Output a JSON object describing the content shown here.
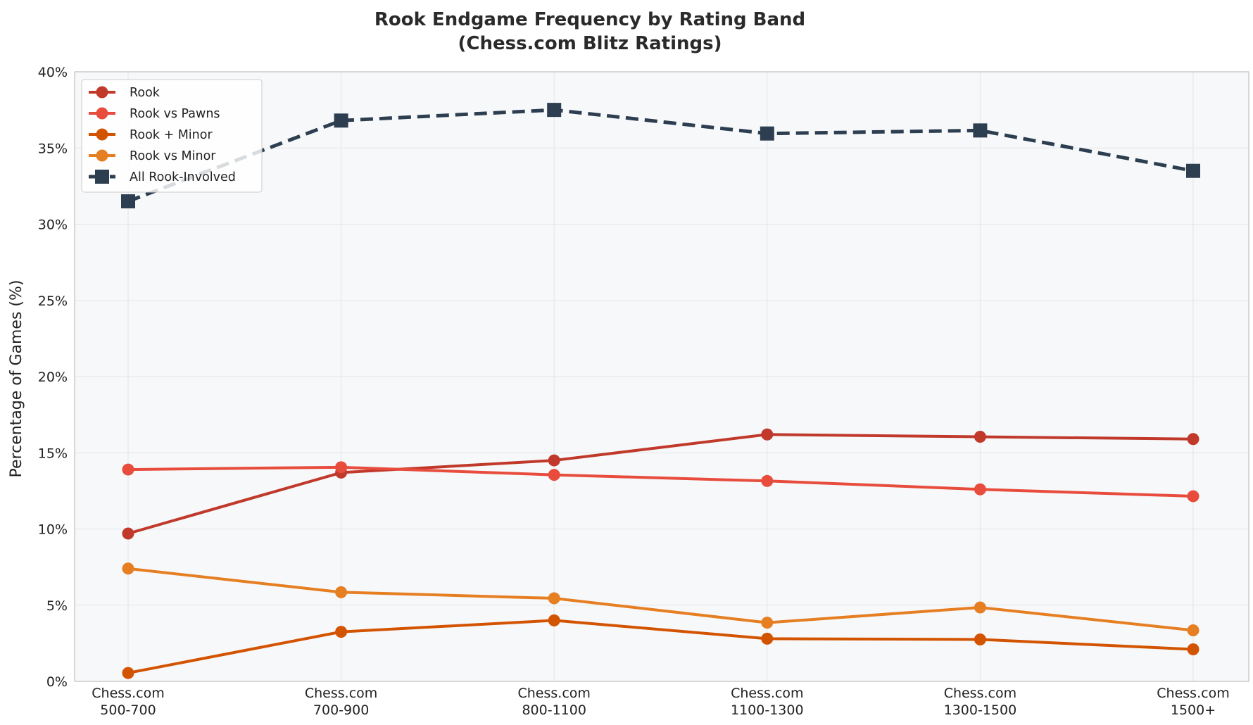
{
  "chart_data": {
    "type": "line",
    "title_line1": "Rook Endgame Frequency by Rating Band",
    "title_line2": "(Chess.com Blitz Ratings)",
    "ylabel": "Percentage of Games (%)",
    "xlabel": "",
    "categories": [
      [
        "Chess.com",
        "500-700"
      ],
      [
        "Chess.com",
        "700-900"
      ],
      [
        "Chess.com",
        "800-1100"
      ],
      [
        "Chess.com",
        "1100-1300"
      ],
      [
        "Chess.com",
        "1300-1500"
      ],
      [
        "Chess.com",
        "1500+"
      ]
    ],
    "ylim": [
      0,
      40
    ],
    "yticks": [
      0,
      5,
      10,
      15,
      20,
      25,
      30,
      35,
      40
    ],
    "ytick_labels": [
      "0%",
      "5%",
      "10%",
      "15%",
      "20%",
      "25%",
      "30%",
      "35%",
      "40%"
    ],
    "grid": true,
    "legend_position": "top-left",
    "series": [
      {
        "name": "Rook",
        "color": "#c0392b",
        "marker": "circle",
        "dash": false,
        "values": [
          9.7,
          13.7,
          14.5,
          16.2,
          16.05,
          15.9
        ]
      },
      {
        "name": "Rook vs Pawns",
        "color": "#e74c3c",
        "marker": "circle",
        "dash": false,
        "values": [
          13.9,
          14.05,
          13.55,
          13.15,
          12.6,
          12.15
        ]
      },
      {
        "name": "Rook + Minor",
        "color": "#d35400",
        "marker": "circle",
        "dash": false,
        "values": [
          0.55,
          3.25,
          4.0,
          2.8,
          2.75,
          2.1
        ]
      },
      {
        "name": "Rook vs Minor",
        "color": "#e67e22",
        "marker": "circle",
        "dash": false,
        "values": [
          7.4,
          5.85,
          5.45,
          3.85,
          4.85,
          3.35
        ]
      },
      {
        "name": "All Rook-Involved",
        "color": "#2c3e50",
        "marker": "square",
        "dash": true,
        "values": [
          31.5,
          36.8,
          37.5,
          35.95,
          36.15,
          33.5
        ]
      }
    ]
  }
}
